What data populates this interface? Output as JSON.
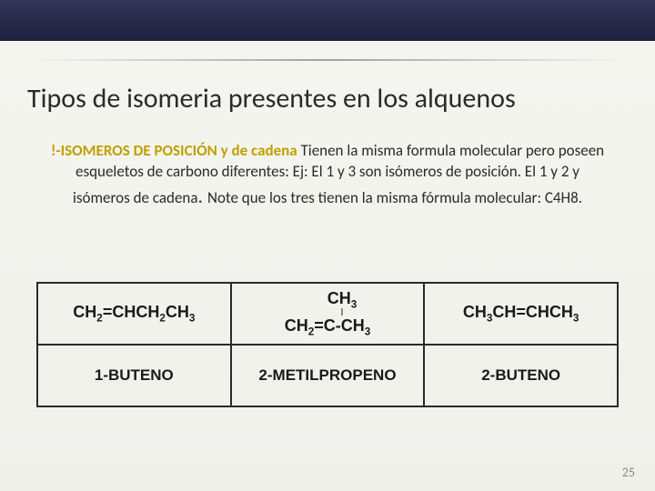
{
  "title": "Tipos de isomeria presentes en los alquenos",
  "body": {
    "highlight_prefix": "!-ISOMEROS DE POSICIÓN  y de cadena",
    "rest1": " Tienen la misma formula molecular pero poseen esqueletos de carbono diferentes: Ej: El 1 y 3 son isómeros de posición. El 1 y 2 y isómeros de cadena",
    "big_period": ". ",
    "rest2": "Note que los tres tienen la misma fórmula molecular: C4H8."
  },
  "table": {
    "col1_formula_parts": [
      "CH",
      "2",
      "=CHCH",
      "2",
      "CH",
      "3"
    ],
    "col2_top": "CH",
    "col2_top_sub": "3",
    "col2_bar": "ǀ",
    "col2_bottom_parts": [
      "CH",
      "2",
      "=C-CH",
      "3"
    ],
    "col3_formula_parts": [
      "CH",
      "3",
      "CH=CHCH",
      "3"
    ],
    "name1": "1-BUTENO",
    "name2": "2-METILPROPENO",
    "name3": "2-BUTENO"
  },
  "page_number": "25",
  "colors": {
    "highlight": "#c0a000",
    "text": "#2a2a2a",
    "border": "#2a2a2a",
    "bg_top": "#2a2a4a"
  }
}
